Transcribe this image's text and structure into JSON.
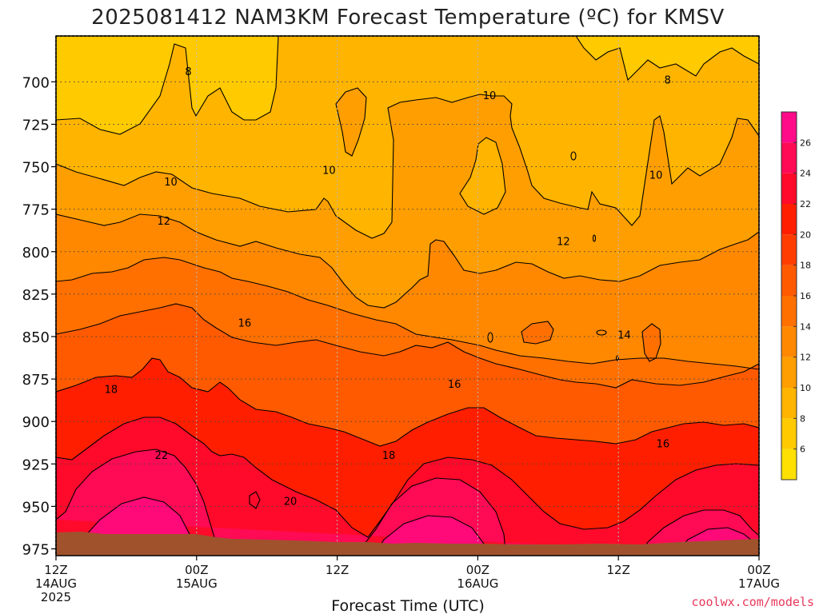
{
  "chart_data": {
    "type": "heatmap",
    "title": "2025081412 NAM3KM Forecast Temperature (ºC) for KMSV",
    "xlabel": "Forecast Time (UTC)",
    "ylabel": "",
    "credit": "coolwx.com/models",
    "x_ticks": [
      {
        "hours": 0,
        "line1": "12Z",
        "line2": "14AUG",
        "line3": "2025"
      },
      {
        "hours": 12,
        "line1": "00Z",
        "line2": "15AUG",
        "line3": ""
      },
      {
        "hours": 24,
        "line1": "12Z",
        "line2": "",
        "line3": ""
      },
      {
        "hours": 36,
        "line1": "00Z",
        "line2": "16AUG",
        "line3": ""
      },
      {
        "hours": 48,
        "line1": "12Z",
        "line2": "",
        "line3": ""
      },
      {
        "hours": 60,
        "line1": "00Z",
        "line2": "17AUG",
        "line3": ""
      }
    ],
    "xlim": [
      0,
      60
    ],
    "y_ticks": [
      700,
      725,
      750,
      775,
      800,
      825,
      850,
      875,
      900,
      925,
      950,
      975
    ],
    "ylim": [
      673,
      979
    ],
    "ground_pressure": 972,
    "colorbar": {
      "ticks": [
        6,
        8,
        10,
        12,
        14,
        16,
        18,
        20,
        22,
        24,
        26
      ],
      "levels": [
        4,
        6,
        8,
        10,
        12,
        14,
        16,
        18,
        20,
        22,
        24,
        26,
        28
      ],
      "colors": [
        "#ffe000",
        "#ffca00",
        "#ffb400",
        "#ff9e00",
        "#ff8800",
        "#ff7000",
        "#ff5a00",
        "#ff3d00",
        "#ff1f00",
        "#ff0a2a",
        "#ff0a55",
        "#ff0a88"
      ]
    },
    "fill_colors": {
      "t6_8": "#ffca00",
      "t8_10": "#ffb400",
      "t10_12": "#ff9e00",
      "t12_14": "#ff8800",
      "t14_16": "#ff7000",
      "t16_18": "#ff5a00",
      "t18_20": "#ff1f00",
      "t20_22": "#ff0a2a",
      "t22_24": "#ff0a55",
      "t24_26": "#ff0a78",
      "ground": "#a0522d"
    },
    "contour_labels": [
      {
        "value": 8,
        "hours": 11.3,
        "pressure": 694
      },
      {
        "value": 8,
        "hours": 52.2,
        "pressure": 699
      },
      {
        "value": 10,
        "hours": 37.0,
        "pressure": 708
      },
      {
        "value": 10,
        "hours": 9.8,
        "pressure": 759
      },
      {
        "value": 10,
        "hours": 23.3,
        "pressure": 752
      },
      {
        "value": 10,
        "hours": 51.2,
        "pressure": 755
      },
      {
        "value": 12,
        "hours": 9.2,
        "pressure": 782
      },
      {
        "value": 12,
        "hours": 43.3,
        "pressure": 794
      },
      {
        "value": 14,
        "hours": 48.5,
        "pressure": 849
      },
      {
        "value": 16,
        "hours": 16.1,
        "pressure": 842
      },
      {
        "value": 16,
        "hours": 34.0,
        "pressure": 878
      },
      {
        "value": 16,
        "hours": 51.8,
        "pressure": 913
      },
      {
        "value": 18,
        "hours": 4.7,
        "pressure": 881
      },
      {
        "value": 18,
        "hours": 28.4,
        "pressure": 920
      },
      {
        "value": 20,
        "hours": 20.0,
        "pressure": 947
      },
      {
        "value": 22,
        "hours": 9.0,
        "pressure": 920
      }
    ]
  }
}
